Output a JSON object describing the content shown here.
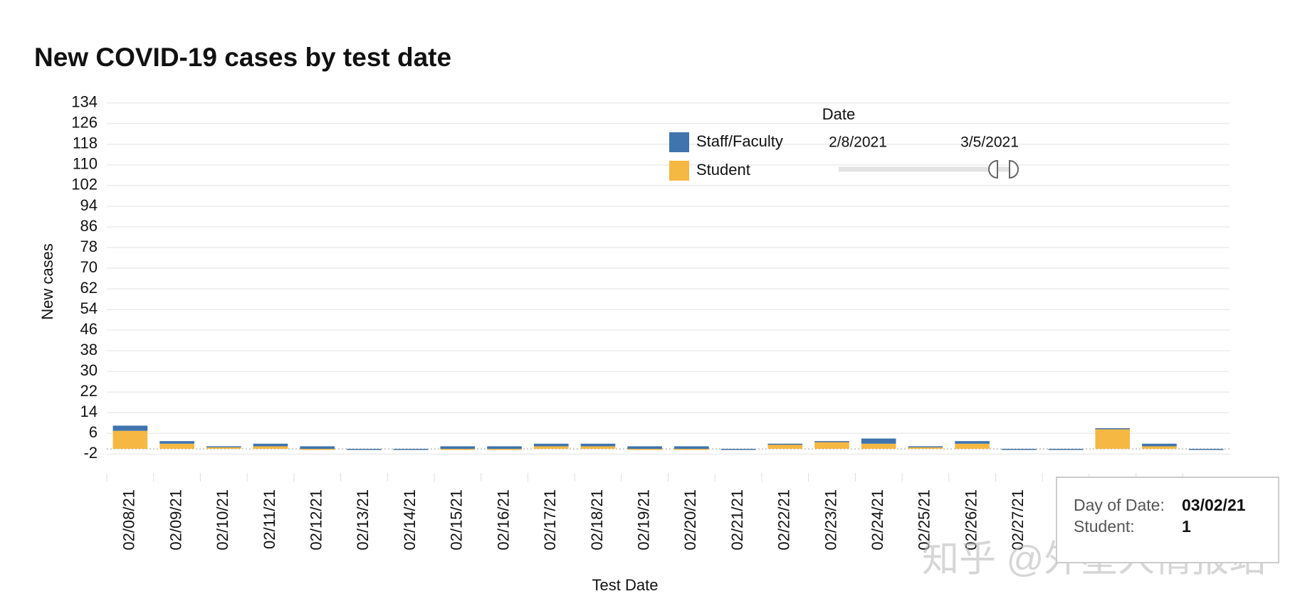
{
  "chart_data": {
    "type": "stacked_bar",
    "title": "New COVID-19 cases by test date",
    "x_label": "Test Date",
    "y_label": "New cases",
    "categories": [
      "02/08/21",
      "02/09/21",
      "02/10/21",
      "02/11/21",
      "02/12/21",
      "02/13/21",
      "02/14/21",
      "02/15/21",
      "02/16/21",
      "02/17/21",
      "02/18/21",
      "02/19/21",
      "02/20/21",
      "02/21/21",
      "02/22/21",
      "02/23/21",
      "02/24/21",
      "02/25/21",
      "02/26/21",
      "02/27/21",
      null,
      null,
      null,
      null
    ],
    "series": [
      {
        "name": "Student",
        "color": "#f5b843",
        "values": [
          7,
          2,
          1,
          1,
          0,
          0,
          0,
          0,
          0,
          1,
          1,
          0,
          0,
          0,
          2,
          3,
          2,
          1,
          2,
          0,
          0,
          8,
          1,
          0
        ]
      },
      {
        "name": "Staff/Faculty",
        "color": "#3f74ad",
        "values": [
          2,
          1,
          0,
          1,
          1,
          0,
          0,
          1,
          1,
          1,
          1,
          1,
          1,
          0,
          0,
          0,
          2,
          0,
          1,
          0,
          0,
          0,
          1,
          0
        ]
      }
    ],
    "ylim": [
      -11,
      140
    ],
    "yticks": [
      -2,
      6,
      14,
      22,
      30,
      38,
      46,
      54,
      62,
      70,
      78,
      86,
      94,
      102,
      110,
      118,
      126,
      134
    ],
    "grid": true,
    "filter": {
      "label": "Date",
      "start": "2/8/2021",
      "end": "3/5/2021"
    },
    "tooltip": {
      "date_label": "Day of Date:",
      "date": "03/02/21",
      "series_label": "Student:",
      "value": "1"
    },
    "watermark": "知乎 @外星人情报站"
  }
}
